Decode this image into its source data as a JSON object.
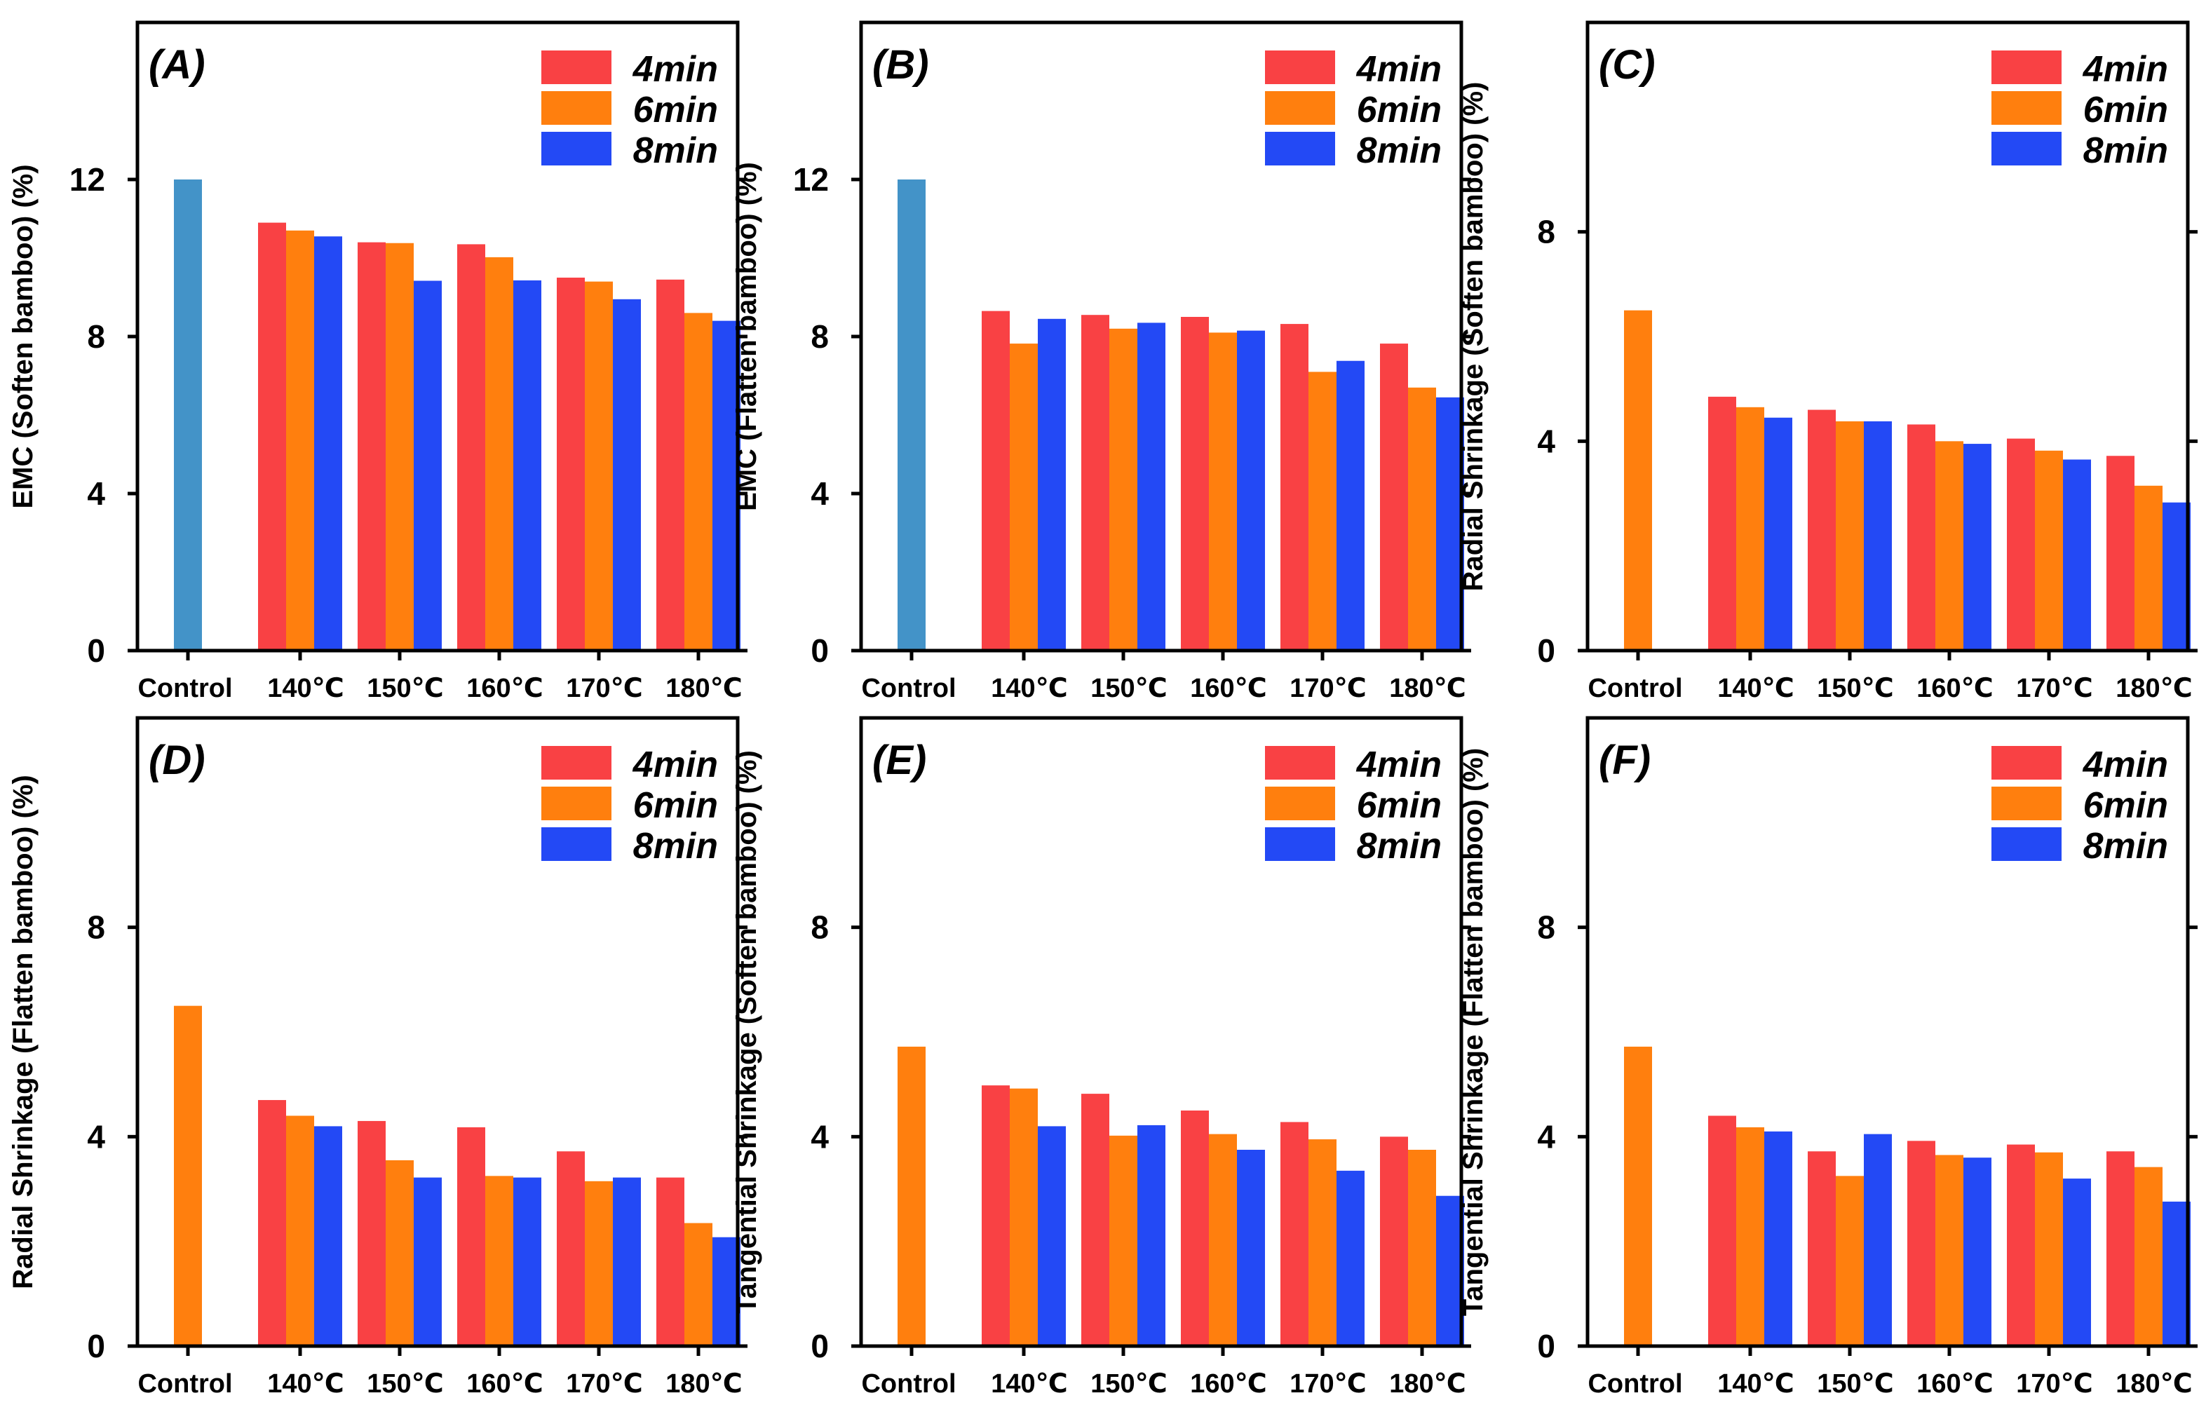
{
  "colors": {
    "control_blue": "#4393c8",
    "control_orange": "#ff7f0e",
    "series_4min": "#f94144",
    "series_6min": "#ff7f0e",
    "series_8min": "#2349f5"
  },
  "chart_data": [
    {
      "type": "bar",
      "panel_label": "(A)",
      "ylabel": "EMC (Soften bamboo) (%)",
      "ylim": [
        0,
        16
      ],
      "yticks": [
        0,
        4,
        8,
        12
      ],
      "control": {
        "label": "Control",
        "value": 12.0,
        "color": "#4393c8"
      },
      "categories": [
        "140℃",
        "150℃",
        "160℃",
        "170℃",
        "180℃"
      ],
      "series": [
        {
          "name": "4min",
          "color": "#f94144",
          "values": [
            10.9,
            10.4,
            10.35,
            9.5,
            9.45
          ]
        },
        {
          "name": "6min",
          "color": "#ff7f0e",
          "values": [
            10.7,
            10.38,
            10.02,
            9.4,
            8.6
          ]
        },
        {
          "name": "8min",
          "color": "#2349f5",
          "values": [
            10.55,
            9.42,
            9.43,
            8.95,
            8.4
          ]
        }
      ]
    },
    {
      "type": "bar",
      "panel_label": "(B)",
      "ylabel": "EMC (Flatten bamboo) (%)",
      "ylim": [
        0,
        16
      ],
      "yticks": [
        0,
        4,
        8,
        12
      ],
      "control": {
        "label": "Control",
        "value": 12.0,
        "color": "#4393c8"
      },
      "categories": [
        "140℃",
        "150℃",
        "160℃",
        "170℃",
        "180℃"
      ],
      "series": [
        {
          "name": "4min",
          "color": "#f94144",
          "values": [
            8.65,
            8.55,
            8.5,
            8.32,
            7.82
          ]
        },
        {
          "name": "6min",
          "color": "#ff7f0e",
          "values": [
            7.82,
            8.2,
            8.1,
            7.1,
            6.7
          ]
        },
        {
          "name": "8min",
          "color": "#2349f5",
          "values": [
            8.45,
            8.35,
            8.15,
            7.38,
            6.45
          ]
        }
      ]
    },
    {
      "type": "bar",
      "panel_label": "(C)",
      "ylabel": "Radial Shrinkage (Soften bamboo) (%)",
      "ylim": [
        0,
        12
      ],
      "yticks": [
        0,
        4,
        8
      ],
      "control": {
        "label": "Control",
        "value": 6.5,
        "color": "#ff7f0e"
      },
      "categories": [
        "140℃",
        "150℃",
        "160℃",
        "170℃",
        "180℃"
      ],
      "series": [
        {
          "name": "4min",
          "color": "#f94144",
          "values": [
            4.85,
            4.6,
            4.32,
            4.05,
            3.72
          ]
        },
        {
          "name": "6min",
          "color": "#ff7f0e",
          "values": [
            4.65,
            4.38,
            4.0,
            3.82,
            3.15
          ]
        },
        {
          "name": "8min",
          "color": "#2349f5",
          "values": [
            4.45,
            4.38,
            3.95,
            3.65,
            2.83
          ]
        }
      ]
    },
    {
      "type": "bar",
      "panel_label": "(D)",
      "ylabel": "Radial Shrinkage (Flatten bamboo) (%)",
      "ylim": [
        0,
        12
      ],
      "yticks": [
        0,
        4,
        8
      ],
      "control": {
        "label": "Control",
        "value": 6.5,
        "color": "#ff7f0e"
      },
      "categories": [
        "140℃",
        "150℃",
        "160℃",
        "170℃",
        "180℃"
      ],
      "series": [
        {
          "name": "4min",
          "color": "#f94144",
          "values": [
            4.7,
            4.3,
            4.18,
            3.72,
            3.22
          ]
        },
        {
          "name": "6min",
          "color": "#ff7f0e",
          "values": [
            4.4,
            3.55,
            3.25,
            3.15,
            2.35
          ]
        },
        {
          "name": "8min",
          "color": "#2349f5",
          "values": [
            4.2,
            3.22,
            3.22,
            3.22,
            2.08
          ]
        }
      ]
    },
    {
      "type": "bar",
      "panel_label": "(E)",
      "ylabel": "Tangential Shrinkage (Soften bamboo) (%)",
      "ylim": [
        0,
        12
      ],
      "yticks": [
        0,
        4,
        8
      ],
      "control": {
        "label": "Control",
        "value": 5.72,
        "color": "#ff7f0e"
      },
      "categories": [
        "140℃",
        "150℃",
        "160℃",
        "170℃",
        "180℃"
      ],
      "series": [
        {
          "name": "4min",
          "color": "#f94144",
          "values": [
            4.98,
            4.82,
            4.5,
            4.28,
            4.0
          ]
        },
        {
          "name": "6min",
          "color": "#ff7f0e",
          "values": [
            4.92,
            4.02,
            4.05,
            3.95,
            3.75
          ]
        },
        {
          "name": "8min",
          "color": "#2349f5",
          "values": [
            4.2,
            4.22,
            3.75,
            3.35,
            2.87
          ]
        }
      ]
    },
    {
      "type": "bar",
      "panel_label": "(F)",
      "ylabel": "Tangential Shrinkage (Flatten bamboo) (%)",
      "ylim": [
        0,
        12
      ],
      "yticks": [
        0,
        4,
        8
      ],
      "control": {
        "label": "Control",
        "value": 5.72,
        "color": "#ff7f0e"
      },
      "categories": [
        "140℃",
        "150℃",
        "160℃",
        "170℃",
        "180℃"
      ],
      "series": [
        {
          "name": "4min",
          "color": "#f94144",
          "values": [
            4.4,
            3.72,
            3.92,
            3.85,
            3.72
          ]
        },
        {
          "name": "6min",
          "color": "#ff7f0e",
          "values": [
            4.18,
            3.25,
            3.65,
            3.7,
            3.42
          ]
        },
        {
          "name": "8min",
          "color": "#2349f5",
          "values": [
            4.1,
            4.05,
            3.6,
            3.2,
            2.76
          ]
        }
      ]
    }
  ]
}
